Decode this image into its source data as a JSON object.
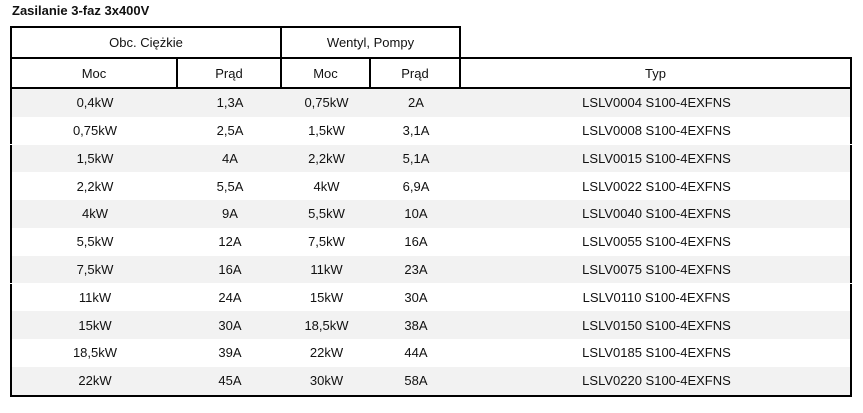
{
  "title": "Zasilanie 3-faz 3x400V",
  "header": {
    "group1": "Obc. Ciężkie",
    "group2": "Wentyl, Pompy",
    "moc1": "Moc",
    "prad1": "Prąd",
    "moc2": "Moc",
    "prad2": "Prąd",
    "typ": "Typ"
  },
  "rows": [
    [
      "0,4kW",
      "1,3A",
      "0,75kW",
      "2A",
      "LSLV0004 S100-4EXFNS"
    ],
    [
      "0,75kW",
      "2,5A",
      "1,5kW",
      "3,1A",
      "LSLV0008 S100-4EXFNS"
    ],
    [
      "1,5kW",
      "4A",
      "2,2kW",
      "5,1A",
      "LSLV0015 S100-4EXFNS"
    ],
    [
      "2,2kW",
      "5,5A",
      "4kW",
      "6,9A",
      "LSLV0022 S100-4EXFNS"
    ],
    [
      "4kW",
      "9A",
      "5,5kW",
      "10A",
      "LSLV0040 S100-4EXFNS"
    ],
    [
      "5,5kW",
      "12A",
      "7,5kW",
      "16A",
      "LSLV0055 S100-4EXFNS"
    ],
    [
      "7,5kW",
      "16A",
      "11kW",
      "23A",
      "LSLV0075 S100-4EXFNS"
    ],
    [
      "11kW",
      "24A",
      "15kW",
      "30A",
      "LSLV0110 S100-4EXFNS"
    ],
    [
      "15kW",
      "30A",
      "18,5kW",
      "38A",
      "LSLV0150 S100-4EXFNS"
    ],
    [
      "18,5kW",
      "39A",
      "22kW",
      "44A",
      "LSLV0185 S100-4EXFNS"
    ],
    [
      "22kW",
      "45A",
      "30kW",
      "58A",
      "LSLV0220 S100-4EXFNS"
    ]
  ],
  "colors": {
    "stripe": "#f2f2f2",
    "border": "#000000"
  }
}
